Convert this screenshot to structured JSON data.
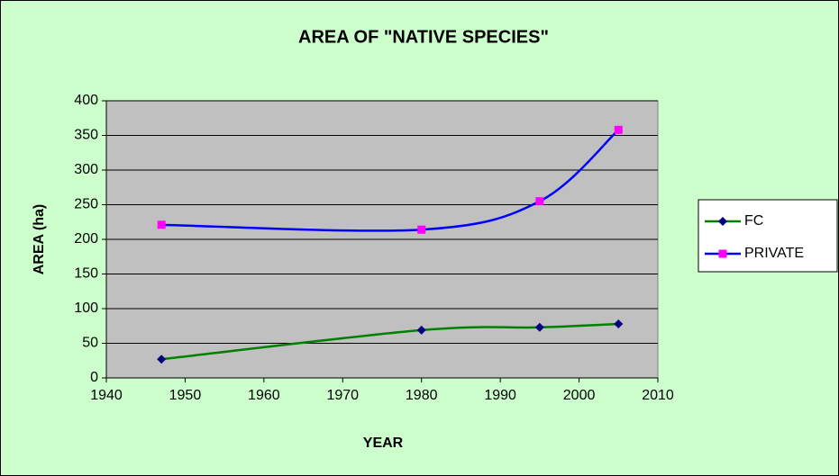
{
  "chart_data": {
    "type": "line",
    "title": "AREA OF \"NATIVE SPECIES\"",
    "x_label": "YEAR",
    "y_label": "AREA (ha)",
    "x": [
      1947,
      1980,
      1995,
      2005
    ],
    "series": [
      {
        "name": "FC",
        "color": "#008000",
        "marker_color": "#000080",
        "marker": "diamond",
        "values": [
          27,
          69,
          73,
          78
        ]
      },
      {
        "name": "PRIVATE",
        "color": "#0000ff",
        "marker_color": "#ff00ff",
        "marker": "square",
        "values": [
          221,
          214,
          255,
          358
        ]
      }
    ],
    "xlim": [
      1940,
      2010
    ],
    "xticks": [
      1940,
      1950,
      1960,
      1970,
      1980,
      1990,
      2000,
      2010
    ],
    "ylim": [
      0,
      400
    ],
    "yticks": [
      0,
      50,
      100,
      150,
      200,
      250,
      300,
      350,
      400
    ],
    "grid": true,
    "smooth": true,
    "legend": "right"
  }
}
